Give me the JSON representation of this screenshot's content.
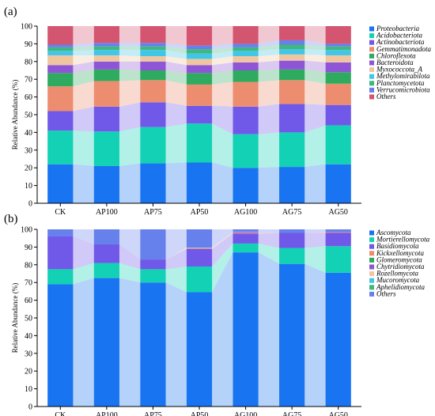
{
  "chart_data": [
    {
      "type": "bar",
      "stacked": true,
      "panel_label": "(a)",
      "title": "",
      "xlabel": "",
      "ylabel": "Relative Abundance (%)",
      "ylim": [
        0,
        100
      ],
      "yticks": [
        0,
        10,
        20,
        30,
        40,
        50,
        60,
        70,
        80,
        90,
        100
      ],
      "categories": [
        "CK",
        "AP100",
        "AP75",
        "AP50",
        "AG100",
        "AG75",
        "AG50"
      ],
      "legend_position": "right",
      "series": [
        {
          "name": "Proteobacteria",
          "color": "#1874f1",
          "values": [
            22,
            21,
            22.5,
            23,
            20,
            20.5,
            22
          ]
        },
        {
          "name": "Acidobacteriota",
          "color": "#12d1b4",
          "values": [
            19,
            19.5,
            20.5,
            22,
            19,
            19.5,
            22
          ]
        },
        {
          "name": "Actinobacteriota",
          "color": "#7058e8",
          "values": [
            11,
            14,
            14,
            10,
            15.5,
            16,
            11.5
          ]
        },
        {
          "name": "Gemmatimonadota",
          "color": "#ec8d70",
          "values": [
            14,
            14.5,
            12.5,
            12,
            14,
            13.5,
            12
          ]
        },
        {
          "name": "Chloroflexota",
          "color": "#2eab5f",
          "values": [
            7.5,
            6.5,
            5.5,
            6.5,
            6.5,
            6,
            6.5
          ]
        },
        {
          "name": "Bacteroidota",
          "color": "#8e56d6",
          "values": [
            4.5,
            4.5,
            5,
            4.5,
            4.5,
            5,
            5.5
          ]
        },
        {
          "name": "Myxococcota_A",
          "color": "#f0c6a0",
          "values": [
            5.5,
            3.5,
            3,
            3.5,
            3.5,
            3.5,
            4
          ]
        },
        {
          "name": "Methylomirabilota",
          "color": "#41c6e8",
          "values": [
            2.5,
            3,
            3.5,
            3,
            3,
            3,
            3
          ]
        },
        {
          "name": "Planctomycetota",
          "color": "#3fb77f",
          "values": [
            2,
            2,
            2,
            2.5,
            2,
            2.5,
            2
          ]
        },
        {
          "name": "Verrucomicrobiota",
          "color": "#6680ec",
          "values": [
            1.5,
            2,
            2,
            2,
            2,
            2.5,
            1.5
          ]
        },
        {
          "name": "Others",
          "color": "#d35570",
          "values": [
            10.5,
            9.5,
            9.5,
            11,
            10,
            8,
            10
          ]
        }
      ]
    },
    {
      "type": "bar",
      "stacked": true,
      "panel_label": "(b)",
      "title": "",
      "xlabel": "",
      "ylabel": "Relative Abundance (%)",
      "ylim": [
        0,
        100
      ],
      "yticks": [
        0,
        10,
        20,
        30,
        40,
        50,
        60,
        70,
        80,
        90,
        100
      ],
      "categories": [
        "CK",
        "AP100",
        "AP75",
        "AP50",
        "AG100",
        "AG75",
        "AG50"
      ],
      "legend_position": "right",
      "series": [
        {
          "name": "Ascomycota",
          "color": "#1874f1",
          "values": [
            69,
            72.5,
            70,
            64.5,
            87,
            80.5,
            75.5
          ]
        },
        {
          "name": "Mortierellomycota",
          "color": "#12d1b4",
          "values": [
            8.5,
            8.5,
            7.5,
            14.5,
            5,
            9,
            15
          ]
        },
        {
          "name": "Basidiomycota",
          "color": "#7058e8",
          "values": [
            18.5,
            10.5,
            5.5,
            10,
            5.5,
            8.5,
            7.5
          ]
        },
        {
          "name": "Kickxellomycota",
          "color": "#ec8d70",
          "values": [
            0,
            0,
            0,
            0.3,
            0.3,
            0,
            0.3
          ]
        },
        {
          "name": "Glomeromycota",
          "color": "#2eab5f",
          "values": [
            0,
            0,
            0,
            0,
            0,
            0,
            0
          ]
        },
        {
          "name": "Chytridiomycota",
          "color": "#8e56d6",
          "values": [
            0,
            0,
            0,
            0,
            0.5,
            0,
            0.2
          ]
        },
        {
          "name": "Rozellomycota",
          "color": "#f0c6a0",
          "values": [
            0,
            0,
            0,
            0.3,
            0.2,
            0,
            0
          ]
        },
        {
          "name": "Mucoromycota",
          "color": "#41c6e8",
          "values": [
            0,
            0,
            0,
            0,
            0,
            0,
            0
          ]
        },
        {
          "name": "Aphelidiomycota",
          "color": "#3fb77f",
          "values": [
            0,
            0,
            0,
            0,
            0,
            0,
            0
          ]
        },
        {
          "name": "Others",
          "color": "#6680ec",
          "values": [
            4,
            8.5,
            17,
            10.4,
            1.5,
            2,
            1.5
          ]
        }
      ]
    }
  ]
}
